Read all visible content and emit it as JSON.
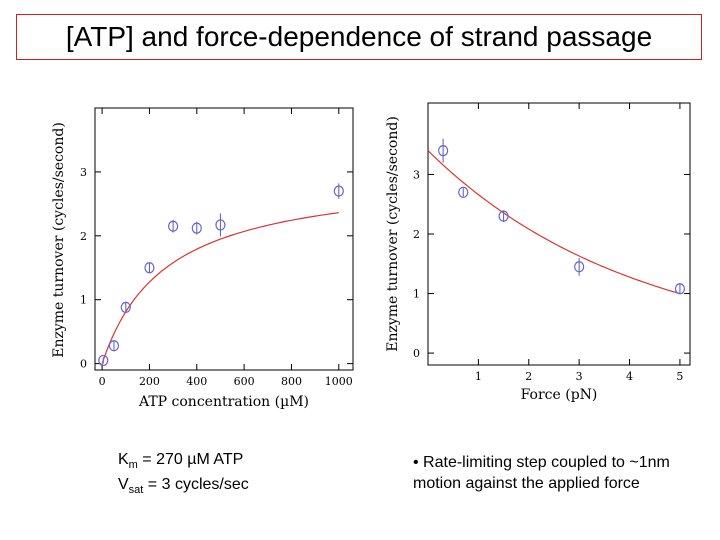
{
  "slide": {
    "title": "[ATP] and force-dependence of strand passage",
    "caption_left": {
      "line1_prefix": "K",
      "line1_sub": "m",
      "line1_rest": " = 270 µM ATP",
      "line2_prefix": "V",
      "line2_sub": "sat",
      "line2_rest": " = 3 cycles/sec"
    },
    "caption_right": "• Rate-limiting step coupled to ~1nm motion against the applied force"
  },
  "chart_data": [
    {
      "type": "scatter",
      "xlabel": "ATP concentration (µM)",
      "ylabel": "Enzyme turnover (cycles/second)",
      "xlim": [
        -30,
        1060
      ],
      "ylim": [
        -0.1,
        4.0
      ],
      "x_ticks": [
        0,
        200,
        400,
        600,
        800,
        1000
      ],
      "y_ticks": [
        0,
        1,
        2,
        3
      ],
      "series": [
        {
          "x": [
            5,
            50,
            100,
            200,
            300,
            400,
            500,
            1000
          ],
          "y": [
            0.05,
            0.28,
            0.88,
            1.5,
            2.15,
            2.12,
            2.17,
            2.7
          ],
          "err": [
            0.05,
            0.07,
            0.09,
            0.07,
            0.1,
            0.1,
            0.18,
            0.12
          ]
        }
      ],
      "fit": {
        "model": "michaelis-menten",
        "vmax": 3.0,
        "km": 270
      },
      "colors": {
        "points": "#6666cc",
        "fit": "#dd3333"
      }
    },
    {
      "type": "scatter",
      "xlabel": "Force (pN)",
      "ylabel": "Enzyme turnover (cycles/second)",
      "xlim": [
        0,
        5.2
      ],
      "ylim": [
        -0.2,
        4.2
      ],
      "x_ticks": [
        1,
        2,
        3,
        4,
        5
      ],
      "y_ticks": [
        0,
        1,
        2,
        3
      ],
      "series": [
        {
          "x": [
            0.3,
            0.7,
            1.5,
            3.0,
            5.0
          ],
          "y": [
            3.4,
            2.7,
            2.3,
            1.45,
            1.08
          ],
          "err": [
            0.2,
            0.07,
            0.1,
            0.15,
            0.08
          ]
        }
      ],
      "fit": {
        "model": "exponential",
        "a": 3.4,
        "b": 0.245
      },
      "colors": {
        "points": "#6666cc",
        "fit": "#dd3333"
      }
    }
  ]
}
